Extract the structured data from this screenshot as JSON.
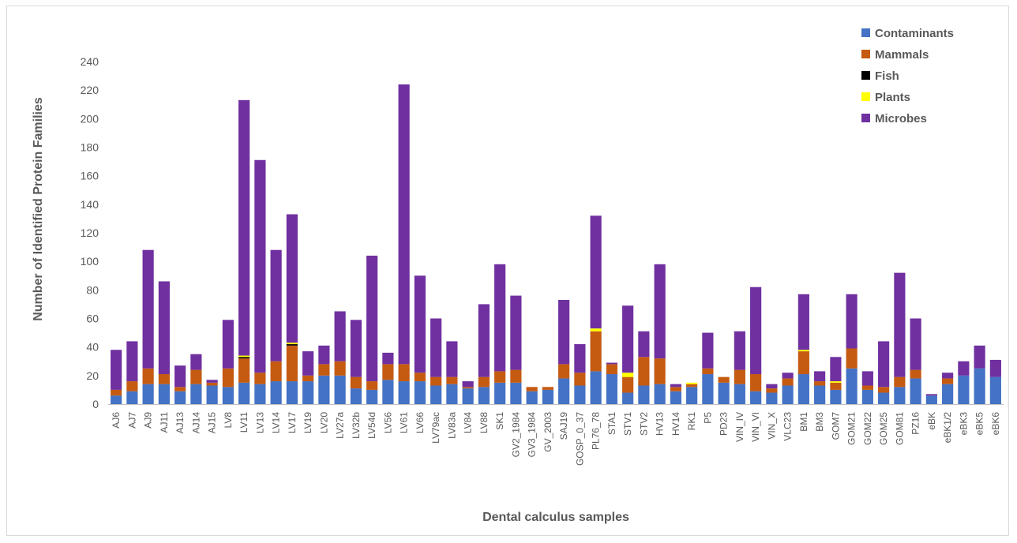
{
  "chart_data": {
    "type": "bar",
    "stacked": true,
    "title": "",
    "xlabel": "Dental calculus samples",
    "ylabel": "Number of Identified Protein Families",
    "ylim": [
      0,
      240
    ],
    "yticks": [
      0,
      20,
      40,
      60,
      80,
      100,
      120,
      140,
      160,
      180,
      200,
      220,
      240
    ],
    "grid": false,
    "legend_position": "top-right",
    "categories": [
      "AJ6",
      "AJ7",
      "AJ9",
      "AJ11",
      "AJ13",
      "AJ14",
      "AJ15",
      "LV8",
      "LV11",
      "LV13",
      "LV14",
      "LV17",
      "LV19",
      "LV20",
      "LV27a",
      "LV32b",
      "LV54d",
      "LV56",
      "LV61",
      "LV66",
      "LV79ac",
      "LV83a",
      "LV84",
      "LV88",
      "SK1",
      "GV2_1984",
      "GV3_1984",
      "GV_2003",
      "SAJ19",
      "GOSP_0_37",
      "PL76_78",
      "STA1",
      "STV1",
      "STV2",
      "HV13",
      "HV14",
      "RK1",
      "P5",
      "PD23",
      "VIN_IV",
      "VIN_VI",
      "VIN_X",
      "VLC23",
      "BM1",
      "BM3",
      "GOM7",
      "GOM21",
      "GOM22",
      "GOM25",
      "GOM81",
      "PZ16",
      "eBK",
      "eBK1/2",
      "eBK3",
      "eBK5",
      "eBK6"
    ],
    "series": [
      {
        "name": "Contaminants",
        "color": "#4472c4",
        "values": [
          6,
          9,
          14,
          14,
          9,
          14,
          13,
          12,
          15,
          14,
          16,
          16,
          16,
          20,
          20,
          11,
          10,
          17,
          16,
          16,
          13,
          14,
          11,
          12,
          15,
          15,
          9,
          10,
          18,
          13,
          23,
          21,
          8,
          13,
          14,
          9,
          12,
          21,
          15,
          14,
          9,
          8,
          13,
          21,
          13,
          10,
          25,
          10,
          8,
          12,
          18,
          6,
          14,
          20,
          25,
          19
        ]
      },
      {
        "name": "Mammals",
        "color": "#c55a11",
        "values": [
          4,
          7,
          11,
          7,
          3,
          10,
          2,
          13,
          17,
          8,
          14,
          25,
          4,
          8,
          10,
          8,
          6,
          11,
          12,
          6,
          6,
          5,
          1,
          7,
          8,
          9,
          3,
          2,
          10,
          9,
          28,
          7,
          11,
          20,
          18,
          3,
          2,
          4,
          4,
          10,
          12,
          3,
          5,
          16,
          3,
          5,
          14,
          3,
          4,
          7,
          6,
          0,
          4,
          0,
          0,
          0
        ]
      },
      {
        "name": "Fish",
        "color": "#000000",
        "values": [
          0,
          0,
          0,
          0,
          0,
          0,
          0,
          0,
          1,
          0,
          0,
          1,
          0,
          0,
          0,
          0,
          0,
          0,
          0,
          0,
          0,
          0,
          0,
          0,
          0,
          0,
          0,
          0,
          0,
          0,
          0,
          0,
          0,
          0,
          0,
          0,
          0,
          0,
          0,
          0,
          0,
          0,
          0,
          0,
          0,
          0,
          0,
          0,
          0,
          0,
          0,
          0,
          0,
          0,
          0,
          0
        ]
      },
      {
        "name": "Plants",
        "color": "#ffff00",
        "values": [
          0,
          0,
          0,
          0,
          0,
          0,
          0,
          0,
          1,
          0,
          0,
          1,
          0,
          0,
          0,
          0,
          0,
          0,
          0,
          0,
          0,
          0,
          0,
          0,
          0,
          0,
          0,
          0,
          0,
          0,
          2,
          0,
          3,
          0,
          0,
          0,
          1,
          0,
          0,
          0,
          0,
          0,
          0,
          1,
          0,
          1,
          0,
          0,
          0,
          0,
          0,
          0,
          0,
          0,
          0,
          0
        ]
      },
      {
        "name": "Microbes",
        "color": "#7030a0",
        "values": [
          28,
          28,
          83,
          65,
          15,
          11,
          2,
          34,
          179,
          149,
          78,
          90,
          17,
          13,
          35,
          40,
          88,
          8,
          196,
          68,
          41,
          25,
          4,
          51,
          75,
          52,
          0,
          0,
          45,
          20,
          79,
          1,
          47,
          18,
          66,
          2,
          0,
          25,
          0,
          27,
          61,
          3,
          4,
          39,
          7,
          17,
          38,
          10,
          32,
          73,
          36,
          1,
          4,
          10,
          16,
          12
        ]
      }
    ]
  }
}
